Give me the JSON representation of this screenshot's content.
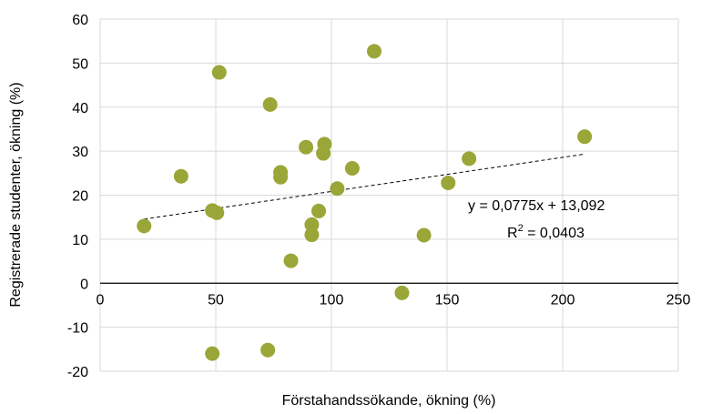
{
  "chart_data": {
    "type": "scatter",
    "xlabel": "Förstahandssökande, ökning (%)",
    "ylabel": "Registrerade studenter, ökning (%)",
    "xlim": [
      0,
      250
    ],
    "ylim": [
      -20,
      60
    ],
    "xticks": [
      "0",
      "50",
      "100",
      "150",
      "200",
      "250"
    ],
    "yticks": [
      "-20",
      "-10",
      "0",
      "10",
      "20",
      "30",
      "40",
      "50",
      "60"
    ],
    "grid": "vertical and horizontal gridlines",
    "marker_color": "#9aa637",
    "points": [
      {
        "x": 19,
        "y": 13
      },
      {
        "x": 35,
        "y": 24.3
      },
      {
        "x": 48.5,
        "y": 16.5
      },
      {
        "x": 50.5,
        "y": 16
      },
      {
        "x": 51.5,
        "y": 47.9
      },
      {
        "x": 48.5,
        "y": -16
      },
      {
        "x": 72.5,
        "y": -15.2
      },
      {
        "x": 73.5,
        "y": 40.6
      },
      {
        "x": 78,
        "y": 25.2
      },
      {
        "x": 78,
        "y": 24.1
      },
      {
        "x": 82.5,
        "y": 5.1
      },
      {
        "x": 89,
        "y": 30.9
      },
      {
        "x": 91.5,
        "y": 13.3
      },
      {
        "x": 91.5,
        "y": 11
      },
      {
        "x": 94.5,
        "y": 16.4
      },
      {
        "x": 96.5,
        "y": 29.5
      },
      {
        "x": 97,
        "y": 31.6
      },
      {
        "x": 102.5,
        "y": 21.5
      },
      {
        "x": 109,
        "y": 26.1
      },
      {
        "x": 118.5,
        "y": 52.7
      },
      {
        "x": 130.5,
        "y": -2.2
      },
      {
        "x": 140,
        "y": 10.9
      },
      {
        "x": 150.5,
        "y": 22.8
      },
      {
        "x": 159.5,
        "y": 28.3
      },
      {
        "x": 209.5,
        "y": 33.3
      }
    ],
    "trendline": {
      "style": "dashed",
      "x_range": [
        19,
        209.5
      ],
      "slope": 0.0775,
      "intercept": 13.092,
      "equation_label": "y = 0,0775x + 13,092",
      "r2_prefix": "R",
      "r2_sup": "2",
      "r2_suffix": " = 0,0403"
    }
  }
}
